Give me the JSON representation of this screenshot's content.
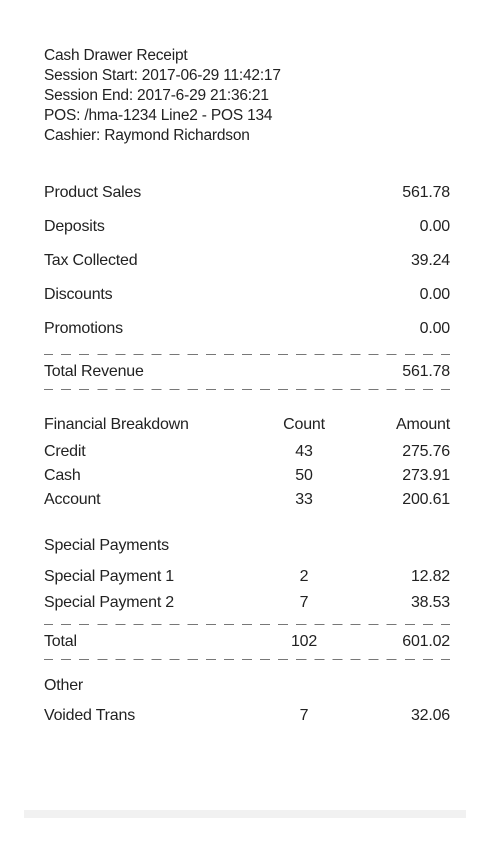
{
  "header": {
    "title": "Cash Drawer Receipt",
    "session_start": "Session Start: 2017-06-29 11:42:17",
    "session_end": "Session End: 2017-6-29 21:36:21",
    "pos": "POS: /hma-1234 Line2 - POS 134",
    "cashier": "Cashier: Raymond Richardson"
  },
  "summary": [
    {
      "label": "Product Sales",
      "amount": "561.78"
    },
    {
      "label": "Deposits",
      "amount": "0.00"
    },
    {
      "label": "Tax Collected",
      "amount": "39.24"
    },
    {
      "label": "Discounts",
      "amount": "0.00"
    },
    {
      "label": "Promotions",
      "amount": "0.00"
    }
  ],
  "total_revenue": {
    "label": "Total Revenue",
    "amount": "561.78"
  },
  "breakdown": {
    "header": {
      "label": "Financial Breakdown",
      "count": "Count",
      "amount": "Amount"
    },
    "rows": [
      {
        "label": "Credit",
        "count": "43",
        "amount": "275.76"
      },
      {
        "label": "Cash",
        "count": "50",
        "amount": "273.91"
      },
      {
        "label": "Account",
        "count": "33",
        "amount": "200.61"
      }
    ]
  },
  "special": {
    "title": "Special Payments",
    "rows": [
      {
        "label": "Special Payment 1",
        "count": "2",
        "amount": "12.82"
      },
      {
        "label": "Special Payment 2",
        "count": "7",
        "amount": "38.53"
      }
    ]
  },
  "total": {
    "label": "Total",
    "count": "102",
    "amount": "601.02"
  },
  "other": {
    "title": "Other",
    "rows": [
      {
        "label": "Voided Trans",
        "count": "7",
        "amount": "32.06"
      }
    ]
  }
}
